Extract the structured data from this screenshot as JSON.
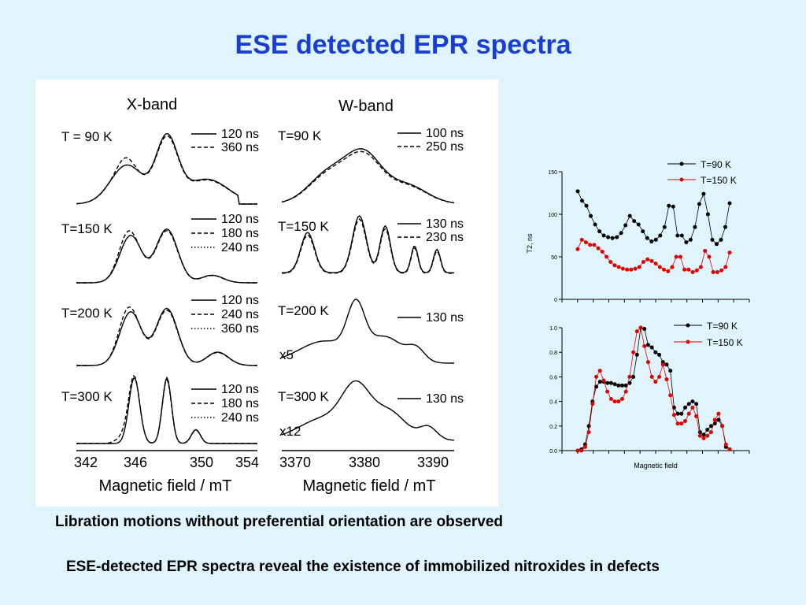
{
  "slide": {
    "title": "ESE detected EPR spectra",
    "bullet1": "Libration motions without preferential orientation are observed",
    "bullet2": "ESE-detected EPR spectra reveal the existence of immobilized nitroxides in defects"
  },
  "colors": {
    "title": "#1a3fd0",
    "background": "#dff4fb",
    "series_black": "#000000",
    "series_red": "#e00000"
  },
  "chart_data": [
    {
      "type": "line",
      "title": "X-band",
      "xlabel": "Magnetic field / mT",
      "xticks": [
        "342",
        "346",
        "350",
        "354"
      ],
      "xlim": [
        342,
        354
      ],
      "panels": [
        {
          "label": "T = 90 K",
          "legend": [
            "120 ns",
            "360 ns"
          ]
        },
        {
          "label": "T=150 K",
          "legend": [
            "120 ns",
            "180 ns",
            "240 ns"
          ]
        },
        {
          "label": "T=200 K",
          "legend": [
            "120 ns",
            "240 ns",
            "360 ns"
          ]
        },
        {
          "label": "T=300 K",
          "legend": [
            "120 ns",
            "180 ns",
            "240 ns"
          ]
        }
      ]
    },
    {
      "type": "line",
      "title": "W-band",
      "xlabel": "Magnetic field / mT",
      "xticks": [
        "3370",
        "3380",
        "3390"
      ],
      "xlim": [
        3368,
        3395
      ],
      "panels": [
        {
          "label": "T=90 K",
          "legend": [
            "100 ns",
            "250 ns"
          ]
        },
        {
          "label": "T=150 K",
          "legend": [
            "130 ns",
            "230 ns"
          ]
        },
        {
          "label": "T=200 K",
          "legend": [
            "130 ns"
          ],
          "scale": "x5"
        },
        {
          "label": "T=300 K",
          "legend": [
            "130 ns"
          ],
          "scale": "x12"
        }
      ]
    },
    {
      "type": "line",
      "xlabel": "",
      "ylabel": "T2, ns",
      "ylim": [
        0,
        150
      ],
      "yticks": [
        "0",
        "50",
        "100",
        "150"
      ],
      "legend_position": "top-right",
      "series": [
        {
          "name": "T=90 K",
          "color": "#000000",
          "values": [
            127,
            116,
            110,
            98,
            88,
            80,
            75,
            73,
            72,
            73,
            78,
            87,
            98,
            92,
            88,
            80,
            72,
            68,
            70,
            75,
            85,
            110,
            109,
            75,
            75,
            67,
            70,
            85,
            112,
            124,
            100,
            70,
            65,
            70,
            85,
            113
          ]
        },
        {
          "name": "T=150 K",
          "color": "#e00000",
          "values": [
            59,
            70,
            67,
            64,
            64,
            60,
            56,
            50,
            44,
            40,
            38,
            36,
            35,
            35,
            36,
            38,
            44,
            47,
            45,
            42,
            38,
            35,
            33,
            38,
            50,
            50,
            35,
            35,
            32,
            34,
            38,
            57,
            50,
            32,
            32,
            34,
            38,
            55
          ]
        }
      ]
    },
    {
      "type": "line",
      "xlabel": "Magnetic field",
      "ylabel": "",
      "ylim": [
        0,
        1.0
      ],
      "yticks": [
        "0.0",
        "0.2",
        "0.4",
        "0.6",
        "0.8",
        "1.0"
      ],
      "legend_position": "top-right",
      "series": [
        {
          "name": "T=90 K",
          "color": "#000000",
          "values": [
            0,
            0.01,
            0.05,
            0.2,
            0.4,
            0.52,
            0.56,
            0.56,
            0.55,
            0.55,
            0.54,
            0.53,
            0.53,
            0.53,
            0.55,
            0.6,
            0.78,
            1.0,
            0.99,
            0.86,
            0.84,
            0.8,
            0.78,
            0.72,
            0.7,
            0.65,
            0.35,
            0.3,
            0.3,
            0.35,
            0.38,
            0.4,
            0.38,
            0.15,
            0.13,
            0.17,
            0.2,
            0.22,
            0.25,
            0.2,
            0.03,
            0.01
          ]
        },
        {
          "name": "T=150 K",
          "color": "#e00000",
          "values": [
            0,
            0,
            0.03,
            0.15,
            0.38,
            0.6,
            0.65,
            0.57,
            0.48,
            0.42,
            0.4,
            0.4,
            0.42,
            0.48,
            0.6,
            0.8,
            0.97,
            1.0,
            0.85,
            0.72,
            0.6,
            0.56,
            0.6,
            0.7,
            0.58,
            0.45,
            0.29,
            0.22,
            0.22,
            0.24,
            0.3,
            0.35,
            0.28,
            0.12,
            0.1,
            0.12,
            0.15,
            0.25,
            0.3,
            0.2,
            0.05,
            0.01
          ]
        }
      ]
    }
  ]
}
